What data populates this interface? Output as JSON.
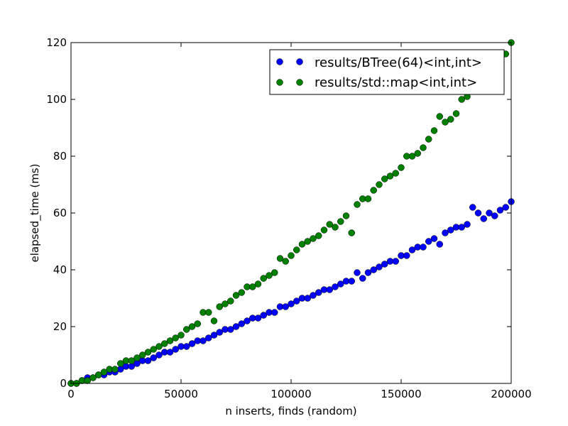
{
  "chart_data": {
    "type": "scatter",
    "title": "",
    "xlabel": "n inserts, finds (random)",
    "ylabel": "elapsed_time (ms)",
    "xlim": [
      0,
      200000
    ],
    "ylim": [
      0,
      120
    ],
    "xticks": [
      "0",
      "50000",
      "100000",
      "150000",
      "200000"
    ],
    "yticks": [
      "0",
      "20",
      "40",
      "60",
      "80",
      "100",
      "120"
    ],
    "grid": false,
    "legend_position": "top-right",
    "x": [
      0,
      2500,
      5000,
      7500,
      10000,
      12500,
      15000,
      17500,
      20000,
      22500,
      25000,
      27500,
      30000,
      32500,
      35000,
      37500,
      40000,
      42500,
      45000,
      47500,
      50000,
      52500,
      55000,
      57500,
      60000,
      62500,
      65000,
      67500,
      70000,
      72500,
      75000,
      77500,
      80000,
      82500,
      85000,
      87500,
      90000,
      92500,
      95000,
      97500,
      100000,
      102500,
      105000,
      107500,
      110000,
      112500,
      115000,
      117500,
      120000,
      122500,
      125000,
      127500,
      130000,
      132500,
      135000,
      137500,
      140000,
      142500,
      145000,
      147500,
      150000,
      152500,
      155000,
      157500,
      160000,
      162500,
      165000,
      167500,
      170000,
      172500,
      175000,
      177500,
      180000,
      182500,
      185000,
      187500,
      190000,
      192500,
      195000,
      197500,
      200000
    ],
    "series": [
      {
        "name": "results/BTree(64)<int,int>",
        "color": "#0000ff",
        "values": [
          0,
          0,
          1,
          2,
          2,
          3,
          3,
          4,
          4,
          5,
          6,
          6,
          7,
          8,
          8,
          9,
          10,
          11,
          11,
          12,
          13,
          13,
          14,
          15,
          15,
          16,
          17,
          18,
          19,
          19,
          20,
          21,
          22,
          23,
          23,
          24,
          25,
          25,
          27,
          27,
          28,
          29,
          30,
          30,
          31,
          32,
          33,
          33,
          34,
          35,
          36,
          36,
          39,
          37,
          39,
          40,
          41,
          42,
          43,
          43,
          45,
          45,
          47,
          48,
          48,
          50,
          51,
          49,
          53,
          54,
          55,
          55,
          56,
          62,
          60,
          58,
          60,
          59,
          61,
          62,
          64
        ]
      },
      {
        "name": "results/std::map<int,int>",
        "color": "#008000",
        "values": [
          0,
          0,
          1,
          1,
          2,
          3,
          4,
          5,
          5,
          7,
          8,
          8,
          9,
          10,
          11,
          12,
          13,
          14,
          15,
          16,
          17,
          19,
          20,
          21,
          25,
          25,
          22,
          27,
          28,
          29,
          31,
          32,
          34,
          34,
          35,
          37,
          38,
          39,
          44,
          43,
          45,
          47,
          49,
          50,
          51,
          52,
          54,
          56,
          55,
          57,
          59,
          53,
          63,
          65,
          65,
          68,
          70,
          72,
          73,
          74,
          76,
          80,
          80,
          81,
          83,
          86,
          89,
          94,
          92,
          93,
          95,
          100,
          101,
          103,
          106,
          108,
          110,
          112,
          114,
          116,
          120
        ]
      }
    ]
  }
}
